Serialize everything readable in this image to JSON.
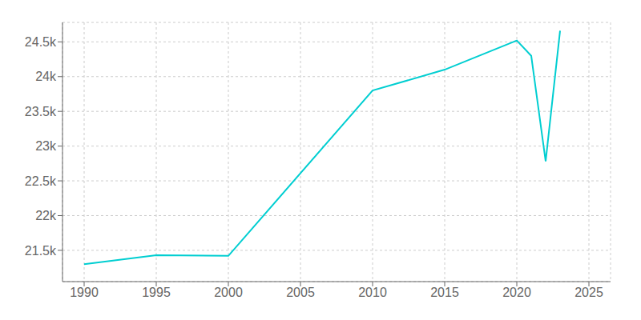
{
  "chart_data": {
    "type": "line",
    "x": [
      1990,
      1995,
      2000,
      2010,
      2015,
      2020,
      2021,
      2022,
      2023
    ],
    "values": [
      21300,
      21430,
      21420,
      23800,
      24100,
      24520,
      24300,
      22780,
      24660
    ],
    "color": "#00CED1",
    "xlim": [
      1988.5,
      2026.5
    ],
    "ylim": [
      21050,
      24780
    ],
    "xticks": [
      1990,
      1995,
      2000,
      2005,
      2010,
      2015,
      2020,
      2025
    ],
    "yticks": [
      {
        "value": 21500,
        "label": "21.5k"
      },
      {
        "value": 22000,
        "label": "22k"
      },
      {
        "value": 22500,
        "label": "22.5k"
      },
      {
        "value": 23000,
        "label": "23k"
      },
      {
        "value": 23500,
        "label": "23.5k"
      },
      {
        "value": 24000,
        "label": "24k"
      },
      {
        "value": 24500,
        "label": "24.5k"
      }
    ],
    "grid": true
  }
}
